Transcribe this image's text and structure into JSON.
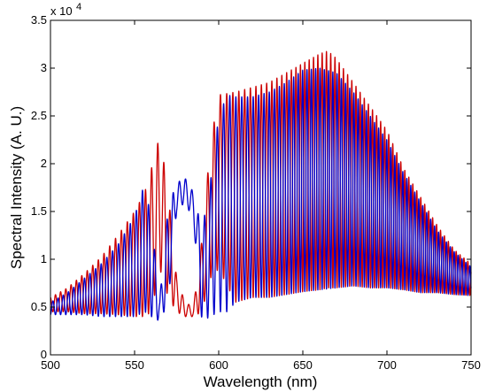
{
  "chart_data": {
    "type": "line",
    "title": "",
    "xlabel": "Wavelength (nm)",
    "ylabel": "Spectral Intensity (A. U.)",
    "y_multiplier_label": "x 10",
    "y_multiplier_exponent": "4",
    "xlim": [
      500,
      750
    ],
    "ylim": [
      0,
      3.5
    ],
    "x_ticks": [
      500,
      550,
      600,
      650,
      700,
      750
    ],
    "x_tick_labels": [
      "500",
      "550",
      "600",
      "650",
      "700",
      "750"
    ],
    "y_ticks": [
      0,
      0.5,
      1,
      1.5,
      2,
      2.5,
      3,
      3.5
    ],
    "y_tick_labels": [
      "0",
      "0.5",
      "1",
      "1.5",
      "2",
      "2.5",
      "3",
      "3.5"
    ],
    "grid": false,
    "legend": "none",
    "series": [
      {
        "color": "#cc0000",
        "envelope_x": [
          500,
          510,
          520,
          530,
          540,
          550,
          556,
          560,
          565,
          570,
          575,
          580,
          585,
          590,
          595,
          600,
          610,
          620,
          630,
          640,
          650,
          660,
          665,
          670,
          680,
          690,
          700,
          710,
          720,
          730,
          740,
          750
        ],
        "envelope_max": [
          0.6,
          0.7,
          0.85,
          1.02,
          1.25,
          1.5,
          1.7,
          1.95,
          2.3,
          1.7,
          0.8,
          0.55,
          0.5,
          1.2,
          2.2,
          2.72,
          2.75,
          2.8,
          2.85,
          2.95,
          3.05,
          3.15,
          3.18,
          3.1,
          2.85,
          2.6,
          2.35,
          1.95,
          1.65,
          1.35,
          1.1,
          0.95
        ],
        "envelope_min": [
          0.45,
          0.45,
          0.43,
          0.43,
          0.42,
          0.4,
          0.4,
          0.45,
          0.9,
          0.6,
          0.45,
          0.4,
          0.4,
          0.45,
          0.8,
          0.9,
          0.55,
          0.6,
          0.6,
          0.63,
          0.66,
          0.68,
          0.7,
          0.7,
          0.72,
          0.7,
          0.7,
          0.68,
          0.65,
          0.65,
          0.63,
          0.62
        ],
        "fringe_period_nm": [
          [
            500,
            3.0
          ],
          [
            550,
            3.6
          ],
          [
            600,
            3.8
          ],
          [
            650,
            2.6
          ],
          [
            700,
            2.4
          ],
          [
            750,
            2.3
          ]
        ]
      },
      {
        "color": "#0000cc",
        "envelope_x": [
          500,
          510,
          520,
          530,
          540,
          550,
          556,
          560,
          565,
          570,
          575,
          580,
          585,
          590,
          595,
          600,
          605,
          610,
          620,
          630,
          640,
          650,
          660,
          670,
          680,
          690,
          700,
          710,
          720,
          730,
          740,
          750
        ],
        "envelope_max": [
          0.55,
          0.65,
          0.8,
          0.95,
          1.15,
          1.45,
          1.8,
          1.4,
          0.6,
          1.55,
          1.8,
          1.85,
          1.7,
          1.3,
          1.8,
          2.5,
          2.72,
          2.7,
          2.7,
          2.75,
          2.85,
          2.98,
          3.0,
          2.95,
          2.75,
          2.5,
          2.25,
          1.9,
          1.6,
          1.3,
          1.08,
          0.92
        ],
        "envelope_min": [
          0.42,
          0.42,
          0.42,
          0.4,
          0.4,
          0.4,
          0.45,
          0.4,
          0.35,
          0.55,
          1.5,
          1.6,
          1.4,
          0.35,
          0.4,
          0.45,
          0.45,
          0.55,
          0.6,
          0.6,
          0.63,
          0.66,
          0.68,
          0.7,
          0.72,
          0.7,
          0.7,
          0.68,
          0.65,
          0.65,
          0.63,
          0.62
        ],
        "fringe_period_nm": [
          [
            500,
            3.0
          ],
          [
            550,
            3.6
          ],
          [
            600,
            3.8
          ],
          [
            650,
            2.6
          ],
          [
            700,
            2.4
          ],
          [
            750,
            2.3
          ]
        ]
      }
    ]
  }
}
